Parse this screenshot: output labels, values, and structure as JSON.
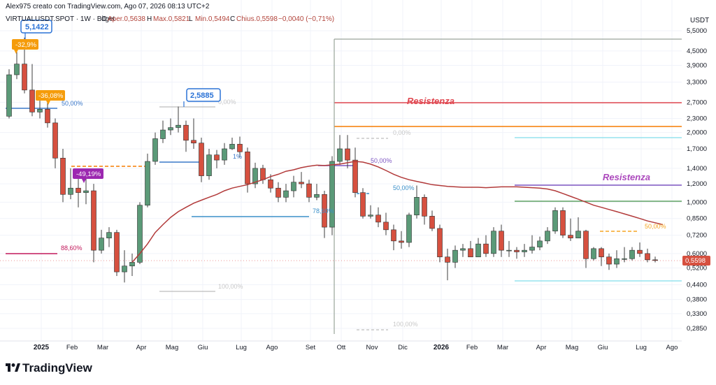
{
  "header": {
    "created_by": "Alex975 creato con TradingView.com, Ago 07, 2026 08:13 UTC+2",
    "symbol": "VIRTUALUSDT.SPOT · 1W · Bitget",
    "open_label": "O",
    "open_value": "Aper.0,5638",
    "high_label": "H",
    "high_value": "Max.0,5821",
    "low_label": "L",
    "low_value": "Min.0,5494",
    "close_label": "C",
    "close_value": "Chius.0,5598",
    "change_value": "−0,0040 (−0,71%)"
  },
  "currency": "USDT",
  "price_badge": "0,5598",
  "logo_text": "TradingView",
  "colors": {
    "up": "#5b9a78",
    "down": "#d6503f",
    "ma": "#b23a3a",
    "resist_red": "#e0464f",
    "resist_orange": "#f57c00",
    "resist_purple": "#7e57c2",
    "green_line": "#3f8f45",
    "cyan_line": "#80deea",
    "blue_line": "#3a78c9",
    "magenta_line": "#c2185b",
    "callout_blue": "#2a72d6",
    "callout_orange": "#f59c0b",
    "callout_purple": "#9c27b0"
  },
  "annotations": {
    "peak_price": "5,1422",
    "peak_pct": "-32,9%",
    "drop_pct": "-36,08%",
    "low_pct": "-49,19%",
    "mid_peak_price": "2,5885",
    "fib_50_a": "50,00%",
    "fib_886": "88,60%",
    "fib_0_a": "0,00%",
    "fib_100_a": "100,00%",
    "fib_50_b": "50,00%",
    "fib_786": "78,60%",
    "fib_0_b": "0,00%",
    "fib_100_b": "100,00%",
    "fib_50_c": "50,00%",
    "fib_50_d": "50,00%",
    "fib_1_pct": "1%",
    "resistenza_1": "Resistenza",
    "resistenza_2": "Resistenza"
  },
  "chart_data": {
    "type": "candlestick",
    "scale": "log",
    "ylim": [
      0.25,
      7.0
    ],
    "y_ticks": [
      {
        "v": 5.5,
        "label": "5,5000"
      },
      {
        "v": 4.5,
        "label": "4,5000"
      },
      {
        "v": 3.9,
        "label": "3,9000"
      },
      {
        "v": 3.3,
        "label": "3,3000"
      },
      {
        "v": 2.7,
        "label": "2,7000"
      },
      {
        "v": 2.3,
        "label": "2,3000"
      },
      {
        "v": 2.0,
        "label": "2,0000"
      },
      {
        "v": 1.7,
        "label": "1,7000"
      },
      {
        "v": 1.4,
        "label": "1,4000"
      },
      {
        "v": 1.2,
        "label": "1,2000"
      },
      {
        "v": 1.0,
        "label": "1,0000"
      },
      {
        "v": 0.85,
        "label": "0,8500"
      },
      {
        "v": 0.72,
        "label": "0,7200"
      },
      {
        "v": 0.6,
        "label": "0,6000"
      },
      {
        "v": 0.52,
        "label": "0,5200"
      },
      {
        "v": 0.44,
        "label": "0,4400"
      },
      {
        "v": 0.38,
        "label": "0,3800"
      },
      {
        "v": 0.33,
        "label": "0,3300"
      },
      {
        "v": 0.285,
        "label": "0,2850"
      }
    ],
    "x_ticks": [
      {
        "i": 2,
        "label": "2025",
        "bold": true
      },
      {
        "i": 6,
        "label": "Feb"
      },
      {
        "i": 10,
        "label": "Mar"
      },
      {
        "i": 15,
        "label": "Apr"
      },
      {
        "i": 19,
        "label": "Mag"
      },
      {
        "i": 23,
        "label": "Giu"
      },
      {
        "i": 28,
        "label": "Lug"
      },
      {
        "i": 32,
        "label": "Ago"
      },
      {
        "i": 37,
        "label": "Set"
      },
      {
        "i": 41,
        "label": "Ott"
      },
      {
        "i": 45,
        "label": "Nov"
      },
      {
        "i": 49,
        "label": "Dic"
      },
      {
        "i": 54,
        "label": "2026",
        "bold": true
      },
      {
        "i": 58,
        "label": "Feb"
      },
      {
        "i": 62,
        "label": "Mar"
      },
      {
        "i": 67,
        "label": "Apr"
      },
      {
        "i": 71,
        "label": "Mag"
      },
      {
        "i": 75,
        "label": "Giu"
      },
      {
        "i": 80,
        "label": "Lug"
      },
      {
        "i": 84,
        "label": "Ago"
      }
    ],
    "candles": [
      [
        2.35,
        3.55,
        3.75,
        2.3
      ],
      [
        3.55,
        3.95,
        4.7,
        3.4
      ],
      [
        3.95,
        3.05,
        5.14,
        2.95
      ],
      [
        3.05,
        2.45,
        3.95,
        2.35
      ],
      [
        2.45,
        2.52,
        2.75,
        2.3
      ],
      [
        2.52,
        2.2,
        2.95,
        2.1
      ],
      [
        2.2,
        1.55,
        2.3,
        1.4
      ],
      [
        1.55,
        1.08,
        1.7,
        1.0
      ],
      [
        1.08,
        1.15,
        1.4,
        1.03
      ],
      [
        1.15,
        1.1,
        1.32,
        0.95
      ],
      [
        1.1,
        1.12,
        1.28,
        0.98
      ],
      [
        1.12,
        0.62,
        1.2,
        0.55
      ],
      [
        0.62,
        0.7,
        0.76,
        0.6
      ],
      [
        0.7,
        0.74,
        0.78,
        0.64
      ],
      [
        0.74,
        0.5,
        0.76,
        0.48
      ],
      [
        0.5,
        0.53,
        0.62,
        0.45
      ],
      [
        0.53,
        0.55,
        0.6,
        0.48
      ],
      [
        0.55,
        0.97,
        1.0,
        0.54
      ],
      [
        0.97,
        1.5,
        1.62,
        0.95
      ],
      [
        1.5,
        1.88,
        2.0,
        1.45
      ],
      [
        1.88,
        2.05,
        2.25,
        1.8
      ],
      [
        2.05,
        2.1,
        2.3,
        1.95
      ],
      [
        2.1,
        2.15,
        2.5885,
        2.0
      ],
      [
        2.15,
        1.85,
        2.25,
        1.65
      ],
      [
        1.85,
        1.8,
        2.3,
        1.7
      ],
      [
        1.8,
        1.3,
        1.9,
        1.22
      ],
      [
        1.3,
        1.6,
        1.7,
        1.25
      ],
      [
        1.6,
        1.52,
        1.68,
        1.4
      ],
      [
        1.52,
        1.7,
        1.8,
        1.45
      ],
      [
        1.7,
        1.78,
        1.9,
        1.68
      ],
      [
        1.78,
        1.65,
        1.92,
        1.55
      ],
      [
        1.65,
        1.2,
        1.72,
        1.1
      ],
      [
        1.2,
        1.4,
        1.48,
        1.15
      ],
      [
        1.4,
        1.25,
        1.45,
        1.2
      ],
      [
        1.25,
        1.15,
        1.32,
        1.1
      ],
      [
        1.15,
        1.05,
        1.22,
        1.0
      ],
      [
        1.05,
        1.12,
        1.2,
        1.0
      ],
      [
        1.12,
        1.22,
        1.3,
        1.05
      ],
      [
        1.22,
        1.2,
        1.35,
        1.15
      ],
      [
        1.2,
        1.05,
        1.25,
        1.0
      ],
      [
        1.05,
        1.08,
        1.2,
        1.02
      ],
      [
        1.08,
        0.78,
        1.12,
        0.7
      ],
      [
        0.78,
        1.5,
        1.58,
        0.72
      ],
      [
        1.5,
        1.7,
        1.95,
        1.45
      ],
      [
        1.7,
        1.52,
        1.95,
        1.4
      ],
      [
        1.52,
        1.1,
        1.72,
        1.05
      ],
      [
        1.1,
        0.87,
        1.15,
        0.85
      ],
      [
        0.87,
        0.88,
        0.97,
        0.85
      ],
      [
        0.88,
        0.82,
        0.95,
        0.78
      ],
      [
        0.82,
        0.76,
        0.9,
        0.72
      ],
      [
        0.76,
        0.68,
        0.8,
        0.62
      ],
      [
        0.68,
        0.67,
        0.75,
        0.63
      ],
      [
        0.67,
        0.88,
        0.9,
        0.64
      ],
      [
        0.88,
        1.05,
        1.18,
        0.85
      ],
      [
        1.05,
        0.87,
        1.08,
        0.8
      ],
      [
        0.87,
        0.77,
        0.92,
        0.75
      ],
      [
        0.77,
        0.58,
        0.8,
        0.55
      ],
      [
        0.58,
        0.55,
        0.63,
        0.46
      ],
      [
        0.55,
        0.62,
        0.65,
        0.52
      ],
      [
        0.62,
        0.63,
        0.66,
        0.58
      ],
      [
        0.63,
        0.58,
        0.68,
        0.58
      ],
      [
        0.58,
        0.66,
        0.7,
        0.58
      ],
      [
        0.66,
        0.6,
        0.72,
        0.58
      ],
      [
        0.6,
        0.75,
        0.78,
        0.58
      ],
      [
        0.75,
        0.62,
        0.8,
        0.58
      ],
      [
        0.62,
        0.62,
        0.68,
        0.58
      ],
      [
        0.62,
        0.61,
        0.64,
        0.57
      ],
      [
        0.61,
        0.62,
        0.66,
        0.58
      ],
      [
        0.62,
        0.64,
        0.72,
        0.6
      ],
      [
        0.64,
        0.68,
        0.71,
        0.62
      ],
      [
        0.68,
        0.75,
        0.78,
        0.66
      ],
      [
        0.75,
        0.92,
        0.95,
        0.73
      ],
      [
        0.92,
        0.72,
        0.95,
        0.7
      ],
      [
        0.72,
        0.7,
        0.85,
        0.68
      ],
      [
        0.7,
        0.75,
        0.86,
        0.7
      ],
      [
        0.75,
        0.57,
        0.76,
        0.52
      ],
      [
        0.57,
        0.63,
        0.64,
        0.56
      ],
      [
        0.63,
        0.58,
        0.64,
        0.53
      ],
      [
        0.58,
        0.54,
        0.6,
        0.51
      ],
      [
        0.54,
        0.57,
        0.62,
        0.52
      ],
      [
        0.57,
        0.57,
        0.64,
        0.55
      ],
      [
        0.57,
        0.62,
        0.64,
        0.56
      ],
      [
        0.62,
        0.6,
        0.67,
        0.58
      ],
      [
        0.6,
        0.5638,
        0.63,
        0.55
      ],
      [
        0.5638,
        0.5598,
        0.5821,
        0.5494
      ]
    ],
    "ma": [
      [
        16,
        0.55
      ],
      [
        17,
        0.6
      ],
      [
        18,
        0.66
      ],
      [
        19,
        0.74
      ],
      [
        20,
        0.8
      ],
      [
        21,
        0.86
      ],
      [
        22,
        0.91
      ],
      [
        23,
        0.95
      ],
      [
        24,
        0.99
      ],
      [
        25,
        1.02
      ],
      [
        26,
        1.05
      ],
      [
        27,
        1.08
      ],
      [
        28,
        1.12
      ],
      [
        29,
        1.15
      ],
      [
        30,
        1.17
      ],
      [
        31,
        1.19
      ],
      [
        32,
        1.22
      ],
      [
        33,
        1.25
      ],
      [
        34,
        1.29
      ],
      [
        35,
        1.32
      ],
      [
        36,
        1.36
      ],
      [
        37,
        1.38
      ],
      [
        38,
        1.41
      ],
      [
        39,
        1.43
      ],
      [
        40,
        1.445
      ],
      [
        41,
        1.44
      ],
      [
        42,
        1.45
      ],
      [
        43,
        1.46
      ],
      [
        44,
        1.48
      ],
      [
        45,
        1.5
      ],
      [
        46,
        1.49
      ],
      [
        47,
        1.46
      ],
      [
        48,
        1.42
      ],
      [
        49,
        1.37
      ],
      [
        50,
        1.32
      ],
      [
        51,
        1.28
      ],
      [
        52,
        1.25
      ],
      [
        53,
        1.23
      ],
      [
        54,
        1.21
      ],
      [
        55,
        1.19
      ],
      [
        56,
        1.18
      ],
      [
        57,
        1.17
      ],
      [
        58,
        1.165
      ],
      [
        59,
        1.16
      ],
      [
        60,
        1.16
      ],
      [
        61,
        1.16
      ],
      [
        62,
        1.155
      ],
      [
        63,
        1.16
      ],
      [
        64,
        1.165
      ],
      [
        65,
        1.165
      ],
      [
        66,
        1.165
      ],
      [
        67,
        1.16
      ],
      [
        68,
        1.155
      ],
      [
        69,
        1.15
      ],
      [
        70,
        1.14
      ],
      [
        71,
        1.12
      ],
      [
        72,
        1.09
      ],
      [
        73,
        1.06
      ],
      [
        74,
        1.03
      ],
      [
        75,
        1.0
      ],
      [
        76,
        0.97
      ],
      [
        77,
        0.95
      ],
      [
        78,
        0.93
      ],
      [
        79,
        0.91
      ],
      [
        80,
        0.89
      ],
      [
        81,
        0.87
      ],
      [
        82,
        0.85
      ],
      [
        83,
        0.83
      ],
      [
        84,
        0.815
      ],
      [
        85,
        0.8
      ]
    ]
  }
}
